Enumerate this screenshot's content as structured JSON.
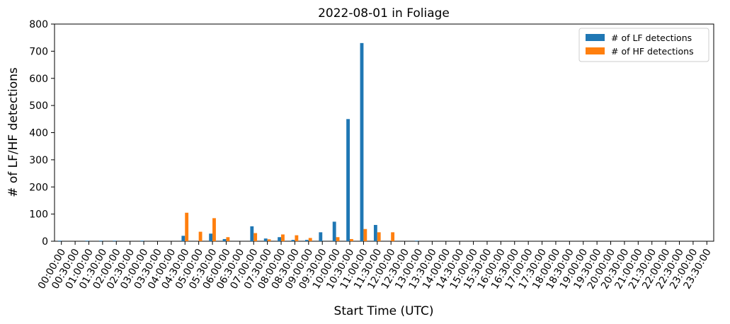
{
  "chart_data": {
    "type": "bar",
    "title": "2022-08-01 in Foliage",
    "xlabel": "Start Time (UTC)",
    "ylabel": "# of LF/HF detections",
    "ylim": [
      0,
      800
    ],
    "yticks": [
      0,
      100,
      200,
      300,
      400,
      500,
      600,
      700,
      800
    ],
    "legend_position": "top-right",
    "categories": [
      "00:00:00",
      "00:30:00",
      "01:00:00",
      "01:30:00",
      "02:00:00",
      "02:30:00",
      "03:00:00",
      "03:30:00",
      "04:00:00",
      "04:30:00",
      "05:00:00",
      "05:30:00",
      "06:00:00",
      "06:30:00",
      "07:00:00",
      "07:30:00",
      "08:00:00",
      "08:30:00",
      "09:00:00",
      "09:30:00",
      "10:00:00",
      "10:30:00",
      "11:00:00",
      "11:30:00",
      "12:00:00",
      "12:30:00",
      "13:00:00",
      "13:30:00",
      "14:00:00",
      "14:30:00",
      "15:00:00",
      "15:30:00",
      "16:00:00",
      "16:30:00",
      "17:00:00",
      "17:30:00",
      "18:00:00",
      "18:30:00",
      "19:00:00",
      "19:30:00",
      "20:00:00",
      "20:30:00",
      "21:00:00",
      "21:30:00",
      "22:00:00",
      "22:30:00",
      "23:00:00",
      "23:30:00"
    ],
    "series": [
      {
        "name": "# of LF detections",
        "color": "#1f77b4",
        "values": [
          2,
          0,
          2,
          2,
          2,
          0,
          2,
          0,
          0,
          20,
          0,
          28,
          8,
          0,
          55,
          10,
          15,
          5,
          5,
          33,
          72,
          450,
          730,
          60,
          0,
          0,
          2,
          0,
          0,
          0,
          0,
          0,
          0,
          0,
          0,
          0,
          0,
          0,
          0,
          0,
          0,
          0,
          0,
          0,
          0,
          0,
          0,
          0
        ]
      },
      {
        "name": "# of HF detections",
        "color": "#ff7f0e",
        "values": [
          0,
          0,
          0,
          0,
          0,
          0,
          0,
          0,
          0,
          105,
          35,
          85,
          15,
          0,
          30,
          7,
          25,
          22,
          12,
          0,
          15,
          8,
          45,
          33,
          33,
          0,
          0,
          0,
          0,
          0,
          0,
          0,
          0,
          0,
          0,
          0,
          0,
          0,
          0,
          0,
          0,
          0,
          0,
          0,
          0,
          0,
          0,
          0
        ]
      }
    ]
  }
}
